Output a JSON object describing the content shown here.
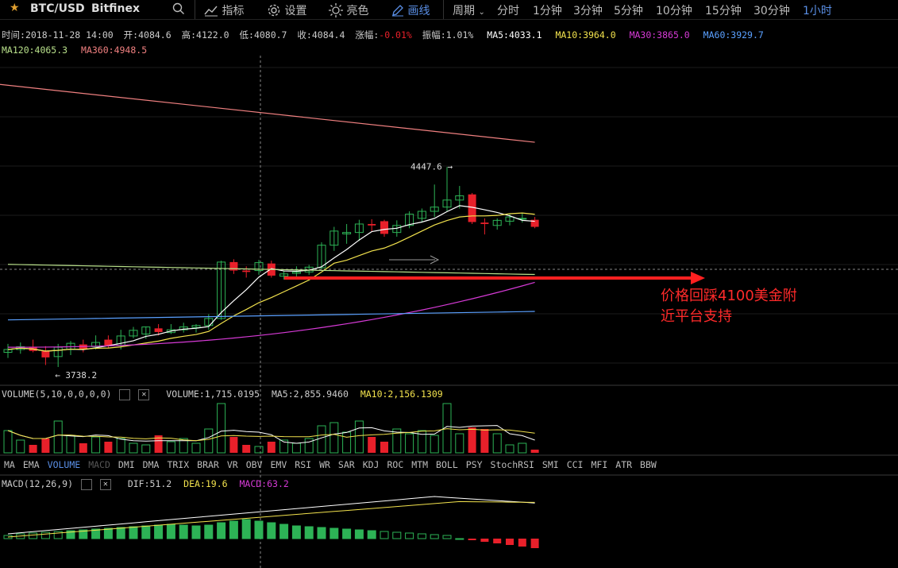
{
  "toolbar": {
    "symbol": "BTC/USD",
    "exchange": "Bitfinex",
    "indicators": "指标",
    "settings": "设置",
    "theme": "亮色",
    "draw": "画线",
    "period": "周期",
    "intervals": [
      "分时",
      "1分钟",
      "3分钟",
      "5分钟",
      "10分钟",
      "15分钟",
      "30分钟",
      "1小时"
    ],
    "active_interval": "1小时"
  },
  "info": {
    "time_label": "时间:",
    "time": "2018-11-28 14:00",
    "open_label": "开:",
    "open": "4084.6",
    "high_label": "高:",
    "high": "4122.0",
    "low_label": "低:",
    "low": "4080.7",
    "close_label": "收:",
    "close": "4084.4",
    "change_label": "涨幅:",
    "change": "-0.01%",
    "amp_label": "振幅:",
    "amp": "1.01%",
    "ma5": "MA5:4033.1",
    "ma10": "MA10:3964.0",
    "ma30": "MA30:3865.0",
    "ma60": "MA60:3929.7",
    "ma120": "MA120:4065.3",
    "ma360": "MA360:4948.5"
  },
  "annotation": {
    "line1": "价格回踩4100美金附",
    "line2": "近平台支持"
  },
  "chart_data": {
    "type": "candlestick",
    "high_marker": "4447.6",
    "low_marker": "3738.2",
    "candles": [
      {
        "o": 3790,
        "h": 3820,
        "l": 3770,
        "c": 3800
      },
      {
        "o": 3800,
        "h": 3825,
        "l": 3785,
        "c": 3810
      },
      {
        "o": 3810,
        "h": 3835,
        "l": 3790,
        "c": 3795
      },
      {
        "o": 3795,
        "h": 3812,
        "l": 3745,
        "c": 3772
      },
      {
        "o": 3775,
        "h": 3820,
        "l": 3738,
        "c": 3808
      },
      {
        "o": 3800,
        "h": 3830,
        "l": 3780,
        "c": 3822
      },
      {
        "o": 3818,
        "h": 3835,
        "l": 3790,
        "c": 3802
      },
      {
        "o": 3810,
        "h": 3850,
        "l": 3800,
        "c": 3825
      },
      {
        "o": 3835,
        "h": 3850,
        "l": 3805,
        "c": 3812
      },
      {
        "o": 3815,
        "h": 3870,
        "l": 3800,
        "c": 3848
      },
      {
        "o": 3848,
        "h": 3880,
        "l": 3840,
        "c": 3868
      },
      {
        "o": 3855,
        "h": 3882,
        "l": 3838,
        "c": 3880
      },
      {
        "o": 3875,
        "h": 3890,
        "l": 3850,
        "c": 3862
      },
      {
        "o": 3860,
        "h": 3890,
        "l": 3855,
        "c": 3870
      },
      {
        "o": 3870,
        "h": 3895,
        "l": 3860,
        "c": 3880
      },
      {
        "o": 3878,
        "h": 3890,
        "l": 3860,
        "c": 3885
      },
      {
        "o": 3885,
        "h": 3925,
        "l": 3870,
        "c": 3910
      },
      {
        "o": 3910,
        "h": 4115,
        "l": 3905,
        "c": 4110
      },
      {
        "o": 4110,
        "h": 4120,
        "l": 4068,
        "c": 4080
      },
      {
        "o": 4080,
        "h": 4095,
        "l": 4055,
        "c": 4075
      },
      {
        "o": 4080,
        "h": 4118,
        "l": 4065,
        "c": 4108
      },
      {
        "o": 4105,
        "h": 4115,
        "l": 4055,
        "c": 4062
      },
      {
        "o": 4060,
        "h": 4080,
        "l": 4048,
        "c": 4068
      },
      {
        "o": 4070,
        "h": 4095,
        "l": 4055,
        "c": 4075
      },
      {
        "o": 4075,
        "h": 4100,
        "l": 4065,
        "c": 4092
      },
      {
        "o": 4090,
        "h": 4180,
        "l": 4085,
        "c": 4170
      },
      {
        "o": 4170,
        "h": 4235,
        "l": 4150,
        "c": 4220
      },
      {
        "o": 4210,
        "h": 4245,
        "l": 4175,
        "c": 4215
      },
      {
        "o": 4215,
        "h": 4260,
        "l": 4185,
        "c": 4245
      },
      {
        "o": 4245,
        "h": 4262,
        "l": 4220,
        "c": 4240
      },
      {
        "o": 4255,
        "h": 4260,
        "l": 4200,
        "c": 4210
      },
      {
        "o": 4215,
        "h": 4258,
        "l": 4200,
        "c": 4240
      },
      {
        "o": 4240,
        "h": 4290,
        "l": 4230,
        "c": 4280
      },
      {
        "o": 4265,
        "h": 4300,
        "l": 4250,
        "c": 4290
      },
      {
        "o": 4290,
        "h": 4385,
        "l": 4270,
        "c": 4305
      },
      {
        "o": 4305,
        "h": 4447,
        "l": 4290,
        "c": 4330
      },
      {
        "o": 4330,
        "h": 4380,
        "l": 4300,
        "c": 4345
      },
      {
        "o": 4350,
        "h": 4355,
        "l": 4245,
        "c": 4252
      },
      {
        "o": 4250,
        "h": 4265,
        "l": 4208,
        "c": 4245
      },
      {
        "o": 4240,
        "h": 4265,
        "l": 4225,
        "c": 4258
      },
      {
        "o": 4255,
        "h": 4280,
        "l": 4240,
        "c": 4270
      },
      {
        "o": 4265,
        "h": 4285,
        "l": 4250,
        "c": 4265
      },
      {
        "o": 4260,
        "h": 4270,
        "l": 4230,
        "c": 4235
      }
    ]
  },
  "volume": {
    "label": "VOLUME(5,10,0,0,0,0)",
    "value": "VOLUME:1,715.0195",
    "ma5": "MA5:2,855.9460",
    "ma10": "MA10:2,156.1309"
  },
  "tabs": [
    "MA",
    "EMA",
    "VOLUME",
    "MACD",
    "DMI",
    "DMA",
    "TRIX",
    "BRAR",
    "VR",
    "OBV",
    "EMV",
    "RSI",
    "WR",
    "SAR",
    "KDJ",
    "ROC",
    "MTM",
    "BOLL",
    "PSY",
    "StochRSI",
    "SMI",
    "CCI",
    "MFI",
    "ATR",
    "BBW"
  ],
  "active_tab": "VOLUME",
  "macd": {
    "label": "MACD(12,26,9)",
    "dif": "DIF:51.2",
    "dea": "DEA:19.6",
    "macd": "MACD:63.2"
  },
  "colors": {
    "up": "#2db356",
    "down": "#e8202a",
    "ma5": "#ffffff",
    "ma10": "#f2e24d",
    "ma30": "#d63ad6",
    "ma60": "#5aa0ff",
    "ma120": "#b8e08a",
    "ma360": "#f08080",
    "accent": "#5a8fe6"
  }
}
